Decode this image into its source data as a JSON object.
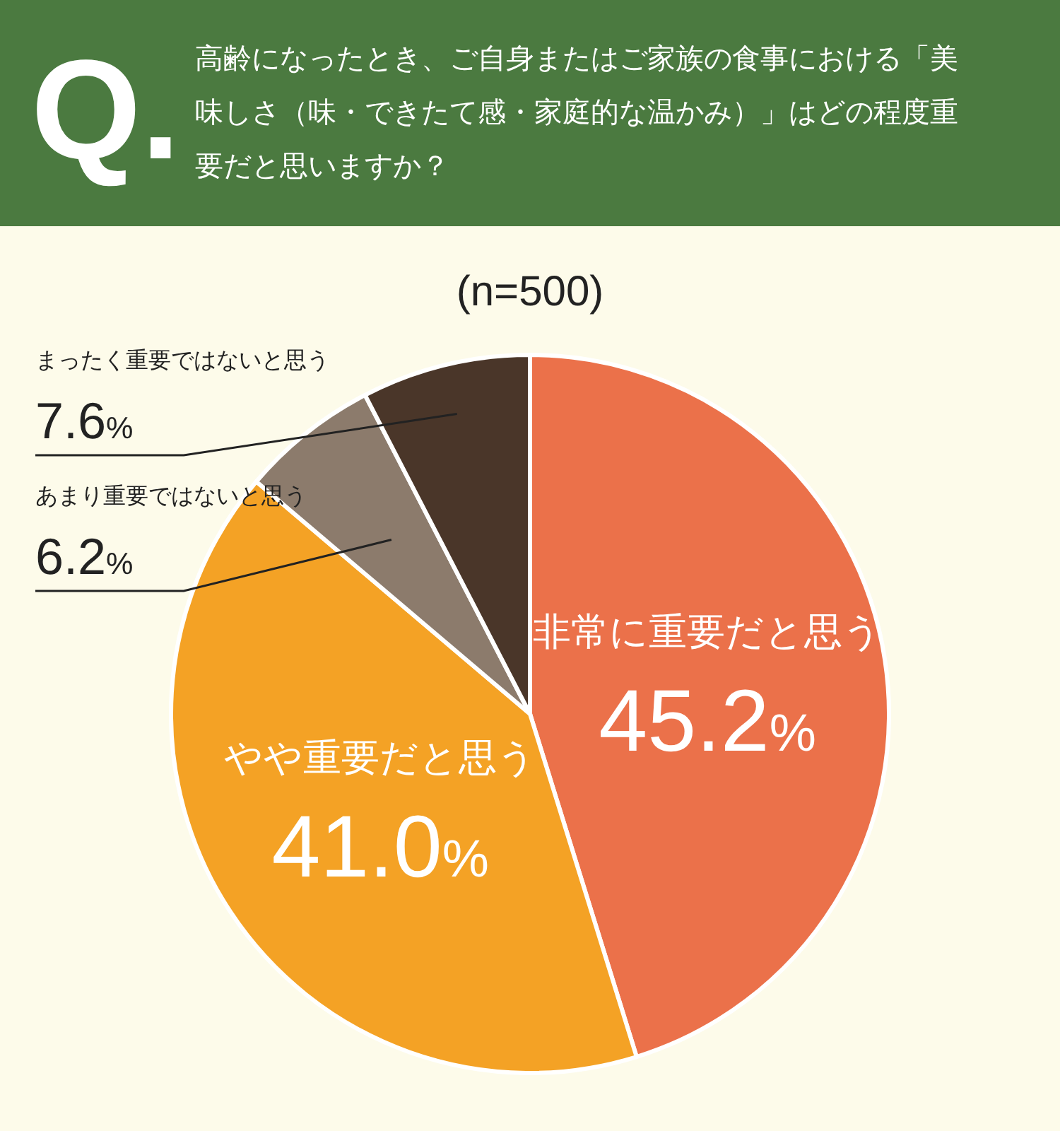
{
  "chart_data": {
    "type": "pie",
    "title": "高齢になったとき、ご自身またはご家族の食事における「美味しさ（味・できたて感・家庭的な温かみ）」はどの程度重要だと思いますか？",
    "subtitle": "(n=500)",
    "annotations": [
      "Q."
    ],
    "categories": [
      "非常に重要だと思う",
      "やや重要だと思う",
      "あまり重要ではないと思う",
      "まったく重要ではないと思う"
    ],
    "values": [
      45.2,
      41.0,
      6.2,
      7.6
    ],
    "colors": [
      "#eb714a",
      "#f4a225",
      "#8c7b6c",
      "#4a3629"
    ],
    "value_labels": [
      "45.2%",
      "41.0%",
      "6.2%",
      "7.6%"
    ]
  }
}
